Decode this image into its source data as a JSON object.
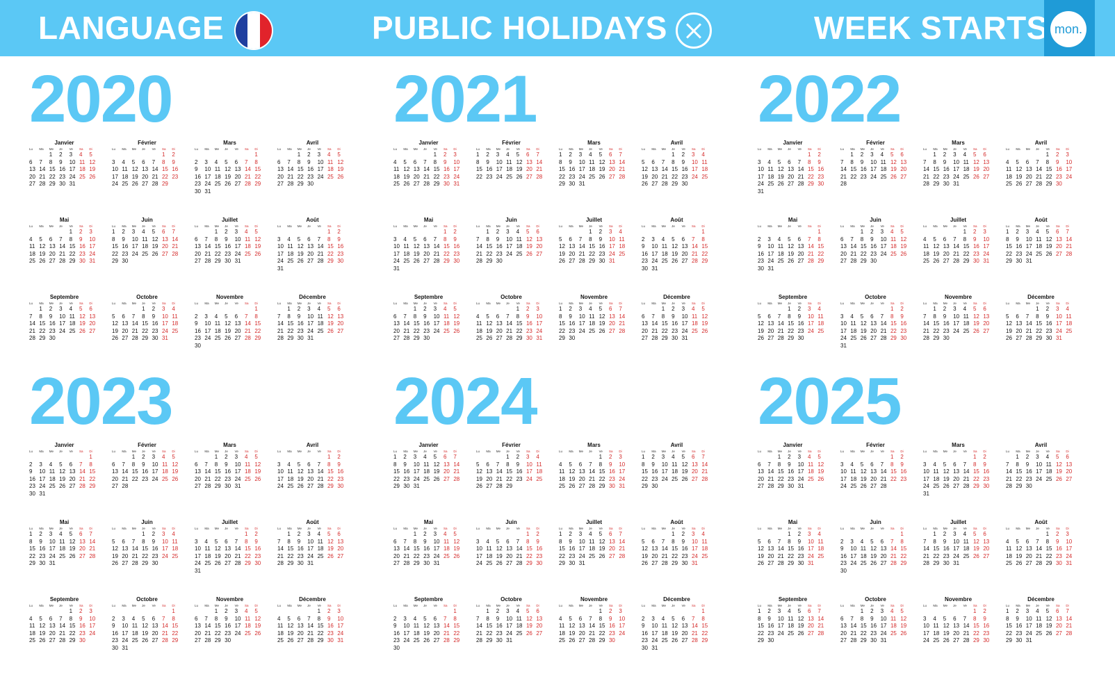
{
  "header": {
    "language_label": "LANGUAGE",
    "holidays_label": "PUBLIC HOLIDAYS",
    "week_starts_label": "WEEK STARTS",
    "week_start_value": "mon.",
    "flag_icon": "france-flag-icon",
    "flag_colors": [
      "#1f3f9f",
      "#ffffff",
      "#e1232b"
    ],
    "holidays_icon": "close-icon",
    "header_color": "#5bc8f5",
    "accent_color": "#1f9bd7"
  },
  "weekday_labels": [
    "Lu",
    "Ma",
    "Me",
    "Je",
    "Ve",
    "Sa",
    "Di"
  ],
  "month_names": [
    "Janvier",
    "Février",
    "Mars",
    "Avril",
    "Mai",
    "Juin",
    "Juillet",
    "Août",
    "Septembre",
    "Octobre",
    "Novembre",
    "Décembre"
  ],
  "years": [
    "2020",
    "2021",
    "2022",
    "2023",
    "2024",
    "2025"
  ],
  "colors": {
    "year_title": "#5bc8f5",
    "weekend": "#d42a2a",
    "weekday": "#111111"
  }
}
